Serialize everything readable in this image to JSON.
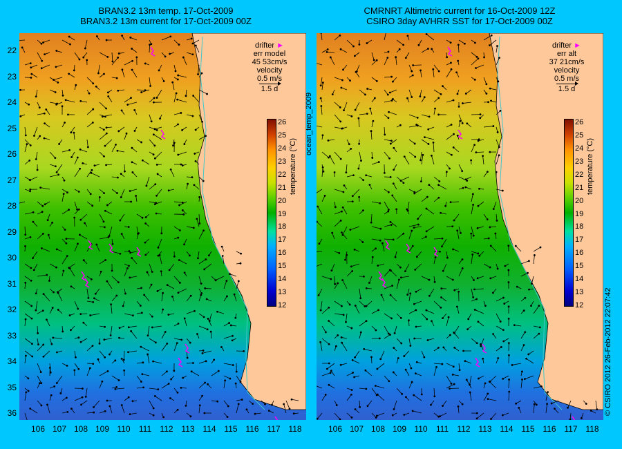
{
  "left_panel": {
    "title_line1": "BRAN3.2 13m temp. 17-Oct-2009",
    "title_line2": "BRAN3.2 13m current for 17-Oct-2009 00Z",
    "legend": {
      "drifter_label": "drifter",
      "err_label": "err model",
      "err_values": "45 53cm/s",
      "velocity_label": "velocity",
      "velocity_scale": "0.5 m/s",
      "duration": "1.5 d"
    }
  },
  "right_panel": {
    "title_line1": "CMRNRT Altimetric current for 16-Oct-2009 12Z",
    "title_line2": "CSIRO 3day AVHRR SST for 17-Oct-2009 00Z",
    "legend": {
      "drifter_label": "drifter",
      "err_label": "err alt",
      "err_values": "37 21cm/s",
      "velocity_label": "velocity",
      "velocity_scale": "0.5 m/s",
      "duration": "1.5 d"
    }
  },
  "latitude_ticks": [
    "22",
    "23",
    "24",
    "25",
    "26",
    "27",
    "28",
    "29",
    "30",
    "31",
    "32",
    "33",
    "34",
    "35",
    "36"
  ],
  "longitude_ticks": [
    "106",
    "107",
    "108",
    "109",
    "110",
    "111",
    "112",
    "113",
    "114",
    "115",
    "116",
    "117",
    "118"
  ],
  "colorbar": {
    "label": "temperature (°C)",
    "ticks": [
      "26",
      "25",
      "24",
      "23",
      "22",
      "21",
      "20",
      "19",
      "18",
      "17",
      "16",
      "15",
      "14",
      "13",
      "12"
    ],
    "min": 11.5,
    "max": 26.5
  },
  "vertical_label": "ocean_temp_2009",
  "copyright": "© CSIRO 2012   26-Feb-2012 22:07:42",
  "colors": {
    "background": "#00c8ff",
    "land": "#ffc89b",
    "drifter": "#ff00ff",
    "coastline_path": "#40c8c8"
  }
}
